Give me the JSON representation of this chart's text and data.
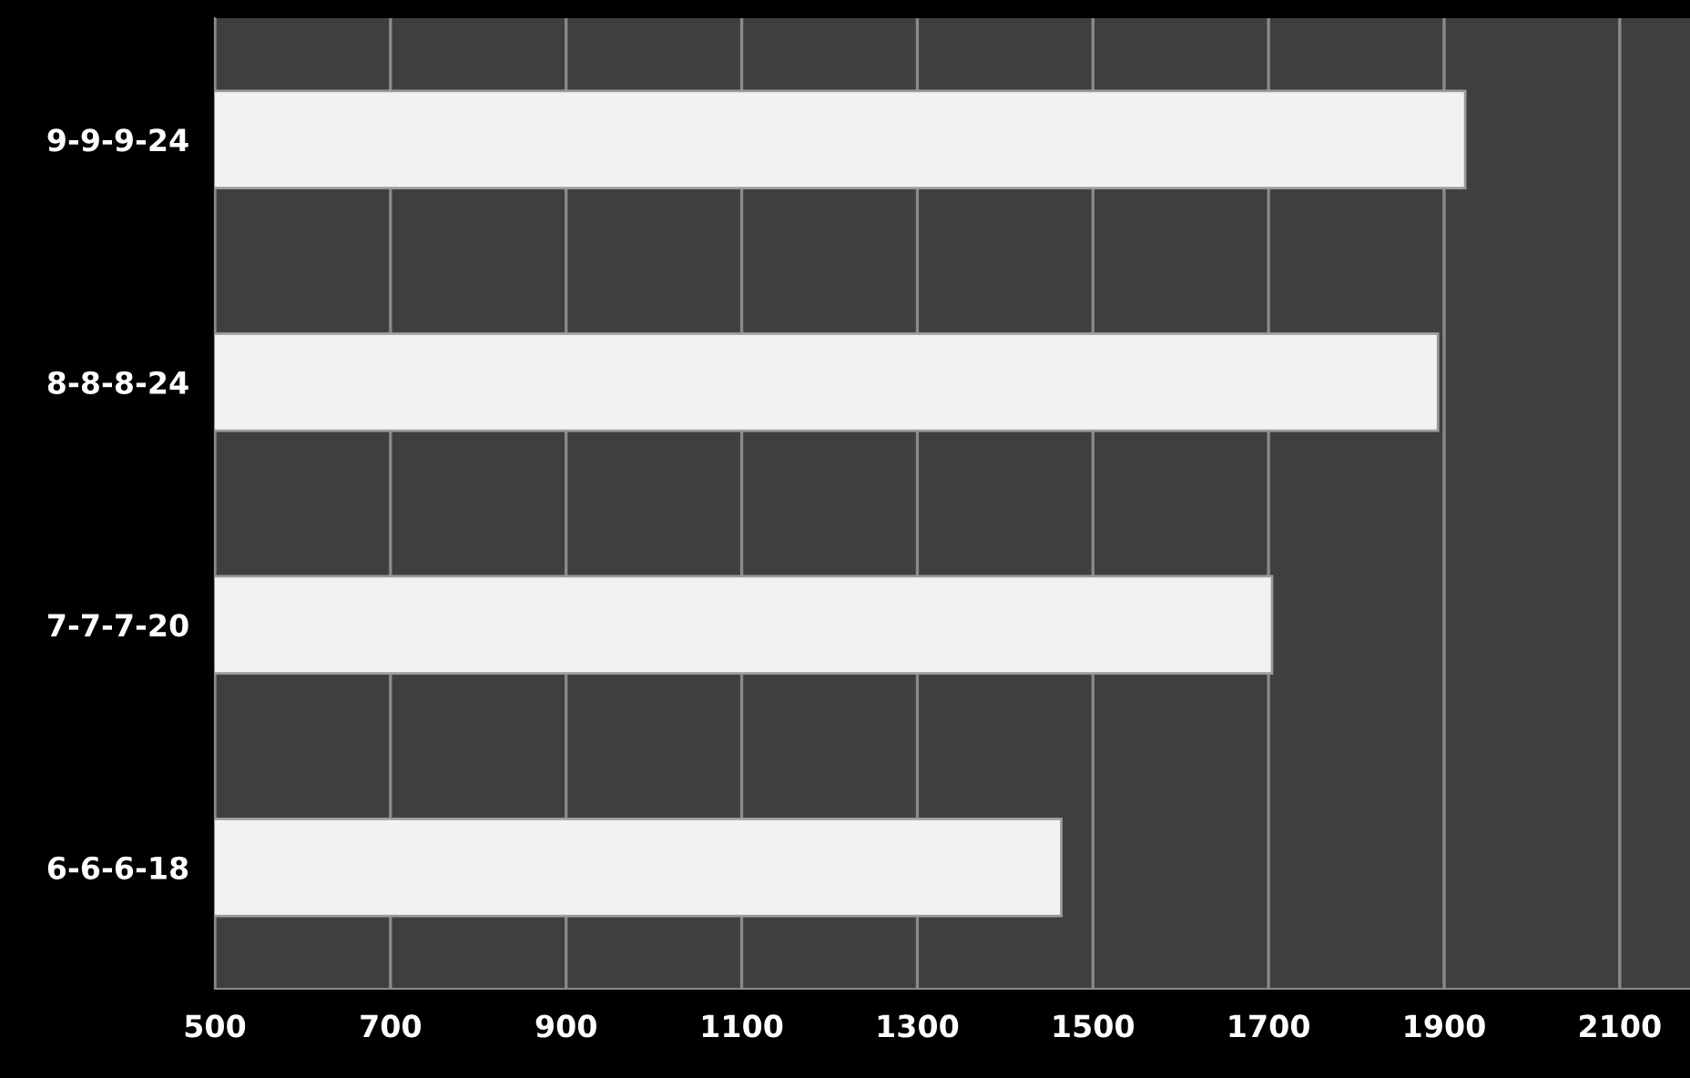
{
  "chart_data": {
    "type": "bar",
    "orientation": "horizontal",
    "categories": [
      "9-9-9-24",
      "8-8-8-24",
      "7-7-7-20",
      "6-6-6-18"
    ],
    "values": [
      1924,
      1893,
      1704,
      1464
    ],
    "color": "#f2f2f2",
    "xlim": [
      500,
      2180
    ],
    "xticks": [
      500,
      700,
      900,
      1100,
      1300,
      1500,
      1700,
      1900,
      2100
    ],
    "grid": "x"
  }
}
